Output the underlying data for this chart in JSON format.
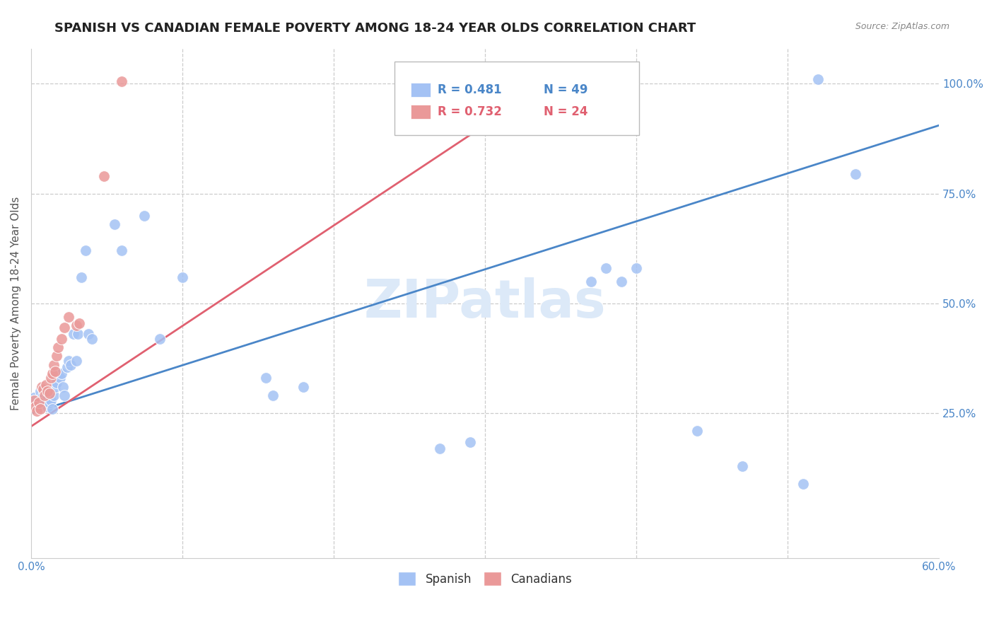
{
  "title": "SPANISH VS CANADIAN FEMALE POVERTY AMONG 18-24 YEAR OLDS CORRELATION CHART",
  "source": "Source: ZipAtlas.com",
  "ylabel": "Female Poverty Among 18-24 Year Olds",
  "legend_label_blue": "Spanish",
  "legend_label_pink": "Canadians",
  "legend_r_blue": "R = 0.481",
  "legend_n_blue": "N = 49",
  "legend_r_pink": "R = 0.732",
  "legend_n_pink": "N = 24",
  "watermark": "ZIPatlas",
  "xmin": 0.0,
  "xmax": 0.6,
  "ymin": -0.08,
  "ymax": 1.08,
  "blue_scatter_color": "#a4c2f4",
  "pink_scatter_color": "#ea9999",
  "blue_line_color": "#4a86c8",
  "pink_line_color": "#e06070",
  "background_color": "#ffffff",
  "grid_color": "#cccccc",
  "title_fontsize": 13,
  "axis_label_fontsize": 11,
  "tick_fontsize": 11,
  "watermark_color": "#dce9f8",
  "spanish_x": [
    0.002,
    0.004,
    0.005,
    0.006,
    0.007,
    0.008,
    0.009,
    0.01,
    0.011,
    0.012,
    0.013,
    0.014,
    0.015,
    0.016,
    0.017,
    0.018,
    0.019,
    0.02,
    0.021,
    0.022,
    0.024,
    0.025,
    0.026,
    0.028,
    0.03,
    0.031,
    0.033,
    0.036,
    0.038,
    0.04,
    0.055,
    0.06,
    0.075,
    0.085,
    0.1,
    0.155,
    0.16,
    0.18,
    0.27,
    0.29,
    0.37,
    0.38,
    0.39,
    0.4,
    0.44,
    0.47,
    0.51,
    0.52,
    0.545
  ],
  "spanish_y": [
    0.285,
    0.27,
    0.265,
    0.3,
    0.28,
    0.29,
    0.27,
    0.28,
    0.265,
    0.275,
    0.28,
    0.26,
    0.29,
    0.31,
    0.32,
    0.34,
    0.33,
    0.34,
    0.31,
    0.29,
    0.355,
    0.37,
    0.36,
    0.43,
    0.37,
    0.43,
    0.56,
    0.62,
    0.43,
    0.42,
    0.68,
    0.62,
    0.7,
    0.42,
    0.56,
    0.33,
    0.29,
    0.31,
    0.17,
    0.185,
    0.55,
    0.58,
    0.55,
    0.58,
    0.21,
    0.13,
    0.09,
    1.01,
    0.795
  ],
  "canadian_x": [
    0.002,
    0.003,
    0.004,
    0.005,
    0.006,
    0.007,
    0.008,
    0.009,
    0.01,
    0.011,
    0.012,
    0.013,
    0.014,
    0.015,
    0.016,
    0.017,
    0.018,
    0.02,
    0.022,
    0.025,
    0.03,
    0.032,
    0.048,
    0.06
  ],
  "canadian_y": [
    0.28,
    0.265,
    0.255,
    0.275,
    0.26,
    0.31,
    0.305,
    0.29,
    0.315,
    0.3,
    0.295,
    0.33,
    0.34,
    0.36,
    0.345,
    0.38,
    0.4,
    0.42,
    0.445,
    0.47,
    0.45,
    0.455,
    0.79,
    1.005
  ],
  "blue_line_x0": 0.0,
  "blue_line_y0": 0.25,
  "blue_line_x1": 0.6,
  "blue_line_y1": 0.905,
  "pink_line_x0": 0.0,
  "pink_line_y0": 0.22,
  "pink_line_x1": 0.35,
  "pink_line_y1": 1.02
}
